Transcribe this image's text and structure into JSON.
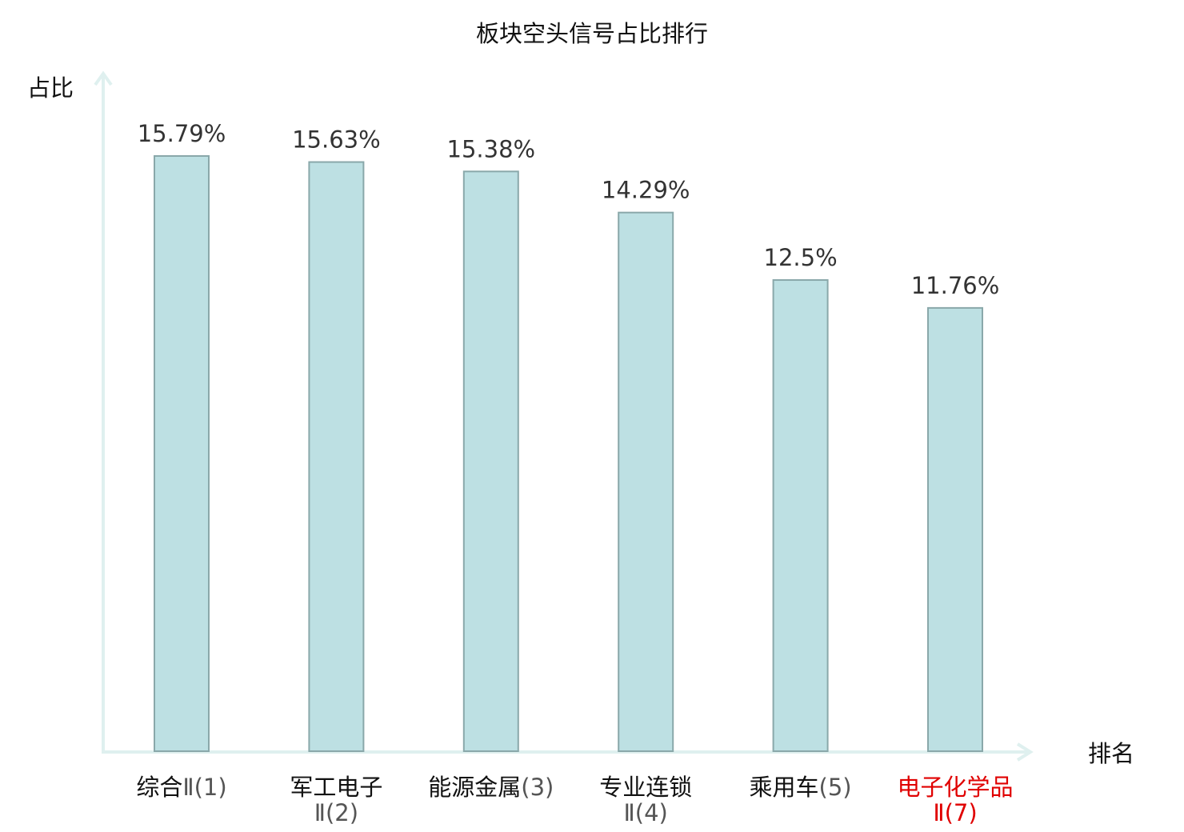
{
  "chart_data": {
    "type": "bar",
    "title": "板块空头信号占比排行",
    "ylabel": "占比",
    "xlabel": "排名",
    "ylim": [
      0,
      16.6
    ],
    "grid": false,
    "categories": [
      {
        "name": "综合",
        "suffix": "Ⅱ(1)"
      },
      {
        "name": "军工电子",
        "suffix": "Ⅱ(2)"
      },
      {
        "name": "能源金属",
        "suffix": "(3)"
      },
      {
        "name": "专业连锁",
        "suffix": "Ⅱ(4)"
      },
      {
        "name": "乘用车",
        "suffix": "(5)"
      },
      {
        "name": "电子化学品",
        "suffix": "Ⅱ(7)"
      }
    ],
    "values": [
      15.79,
      15.63,
      15.38,
      14.29,
      12.5,
      11.76
    ],
    "value_labels": [
      "15.79%",
      "15.63%",
      "15.38%",
      "14.29%",
      "12.5%",
      "11.76%"
    ],
    "highlight_index": 5,
    "colors": {
      "bar_fill": "#bde0e3",
      "bar_stroke": "#8aa8aa",
      "axis": "#dff0ef",
      "highlight_text": "#e00000"
    }
  }
}
